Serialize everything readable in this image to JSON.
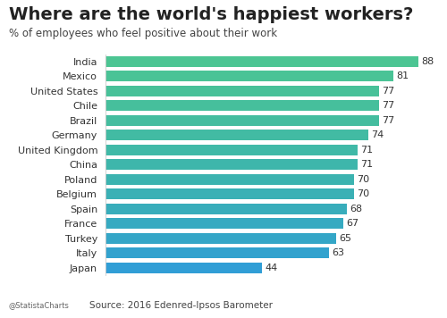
{
  "chart_data": {
    "type": "bar",
    "title": "Where are the world's happiest workers?",
    "subtitle": "% of employees who feel positive about their work",
    "source": "Source: 2016 Edenred-Ipsos Barometer",
    "credit": "@StatistaCharts",
    "orientation": "horizontal",
    "data_labels": true,
    "tick_labels": "y",
    "grid": false,
    "categories": [
      "India",
      "Mexico",
      "United States",
      "Chile",
      "Brazil",
      "Germany",
      "United Kingdom",
      "China",
      "Poland",
      "Belgium",
      "Spain",
      "France",
      "Turkey",
      "Italy",
      "Japan"
    ],
    "values": [
      88,
      81,
      77,
      77,
      77,
      74,
      71,
      71,
      70,
      70,
      68,
      67,
      65,
      63,
      44
    ],
    "colors": [
      "#4cc593",
      "#4ac396",
      "#48c199",
      "#46bf9c",
      "#44bd9f",
      "#42bba3",
      "#40b9a7",
      "#3eb6ab",
      "#3cb3b0",
      "#3ab0b5",
      "#38adbb",
      "#36aac1",
      "#34a6c7",
      "#32a2ce",
      "#309ed6"
    ]
  }
}
